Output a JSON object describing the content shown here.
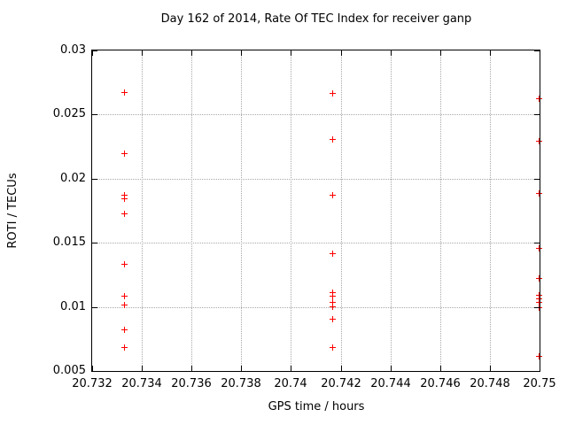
{
  "chart_data": {
    "type": "scatter",
    "title": "Day 162 of 2014, Rate Of TEC Index for receiver ganp",
    "xlabel": "GPS time / hours",
    "ylabel": "ROTI / TECUs",
    "xlim": [
      20.732,
      20.75
    ],
    "ylim": [
      0.005,
      0.03
    ],
    "xticks": [
      20.732,
      20.734,
      20.736,
      20.738,
      20.74,
      20.742,
      20.744,
      20.746,
      20.748,
      20.75
    ],
    "xtick_labels": [
      "20.732",
      "20.734",
      "20.736",
      "20.738",
      "20.74",
      "20.742",
      "20.744",
      "20.746",
      "20.748",
      "20.75"
    ],
    "yticks": [
      0.005,
      0.01,
      0.015,
      0.02,
      0.025,
      0.03
    ],
    "ytick_labels": [
      "0.005",
      "0.01",
      "0.015",
      "0.02",
      "0.025",
      "0.03"
    ],
    "grid": true,
    "legend_position": "none",
    "marker": {
      "shape": "plus",
      "color": "#ff0000"
    },
    "series": [
      {
        "name": "ROTI",
        "points": [
          [
            20.7333,
            0.0267
          ],
          [
            20.7333,
            0.0219
          ],
          [
            20.7333,
            0.0187
          ],
          [
            20.7333,
            0.0184
          ],
          [
            20.7333,
            0.0172
          ],
          [
            20.7333,
            0.0133
          ],
          [
            20.7333,
            0.0108
          ],
          [
            20.7333,
            0.0101
          ],
          [
            20.7333,
            0.0082
          ],
          [
            20.7333,
            0.0068
          ],
          [
            20.7417,
            0.0266
          ],
          [
            20.7417,
            0.023
          ],
          [
            20.7417,
            0.0187
          ],
          [
            20.7417,
            0.0141
          ],
          [
            20.7417,
            0.0111
          ],
          [
            20.7417,
            0.0108
          ],
          [
            20.7417,
            0.0103
          ],
          [
            20.7417,
            0.01
          ],
          [
            20.7417,
            0.009
          ],
          [
            20.7417,
            0.0068
          ],
          [
            20.75,
            0.0262
          ],
          [
            20.75,
            0.0229
          ],
          [
            20.75,
            0.0188
          ],
          [
            20.75,
            0.0145
          ],
          [
            20.75,
            0.0122
          ],
          [
            20.75,
            0.0109
          ],
          [
            20.75,
            0.0106
          ],
          [
            20.75,
            0.0103
          ],
          [
            20.75,
            0.0099
          ],
          [
            20.75,
            0.0061
          ]
        ]
      }
    ]
  }
}
